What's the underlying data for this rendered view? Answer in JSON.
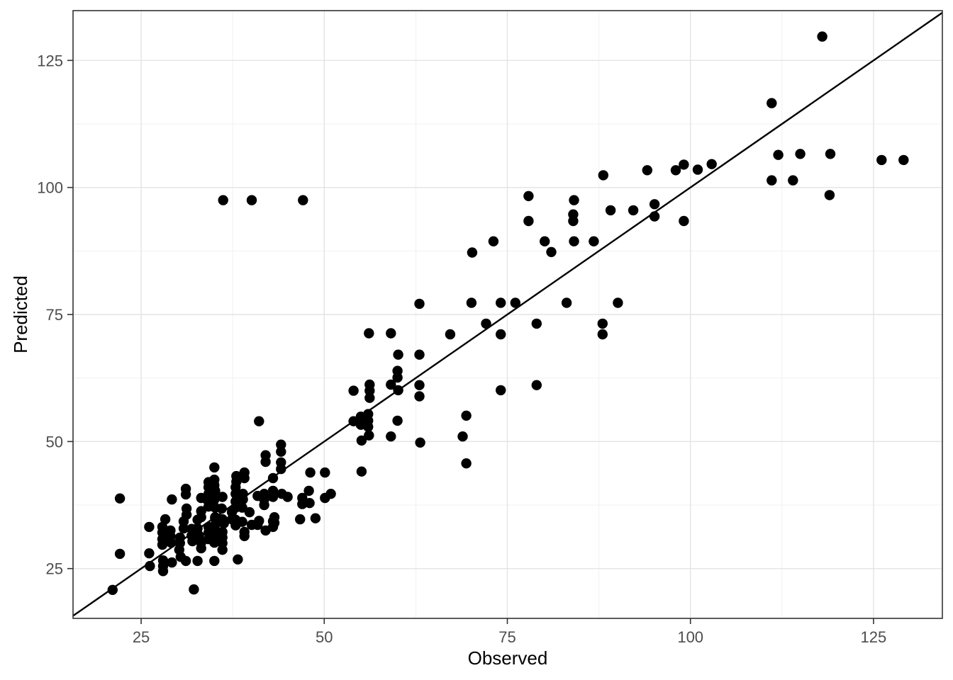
{
  "chart_data": {
    "type": "scatter",
    "title": "",
    "xlabel": "Observed",
    "ylabel": "Predicted",
    "xlim": [
      15.7,
      134.4
    ],
    "ylim": [
      15.2,
      134.8
    ],
    "x_ticks": [
      25,
      50,
      75,
      100,
      125
    ],
    "y_ticks": [
      25,
      50,
      75,
      100,
      125
    ],
    "x_minor_ticks": [
      37.5,
      62.5,
      87.5,
      112.5
    ],
    "y_minor_ticks": [
      37.5,
      62.5,
      87.5,
      112.5
    ],
    "grid": true,
    "legend_position": "none",
    "theme": "bw",
    "reference_line": {
      "kind": "identity",
      "slope": 1,
      "intercept": 0
    },
    "style": {
      "point_color": "#000000",
      "point_radius": 7.2,
      "line_color": "#000000",
      "line_width": 2.4,
      "panel_border_color": "#333333",
      "grid_major_color": "#e4e4e4",
      "grid_minor_color": "#f1f1f1",
      "tick_color": "#333333",
      "axis_text_color": "#4d4d4d",
      "axis_title_color": "#000000",
      "background": "#ffffff"
    },
    "points": [
      [
        21.1,
        20.8
      ],
      [
        22.1,
        27.9
      ],
      [
        22.1,
        38.8
      ],
      [
        26.1,
        33.2
      ],
      [
        26.1,
        28.0
      ],
      [
        26.2,
        25.5
      ],
      [
        27.9,
        33.2
      ],
      [
        27.9,
        32.1
      ],
      [
        27.9,
        30.8
      ],
      [
        27.9,
        29.7
      ],
      [
        28.0,
        26.6
      ],
      [
        28.0,
        25.5
      ],
      [
        28.0,
        24.5
      ],
      [
        28.3,
        34.7
      ],
      [
        29.0,
        32.5
      ],
      [
        29.0,
        31.4
      ],
      [
        29.1,
        30.1
      ],
      [
        29.2,
        26.2
      ],
      [
        29.2,
        38.6
      ],
      [
        30.3,
        31.1
      ],
      [
        30.3,
        30.0
      ],
      [
        30.2,
        28.7
      ],
      [
        30.4,
        27.3
      ],
      [
        30.8,
        34.3
      ],
      [
        30.8,
        32.9
      ],
      [
        31.1,
        40.7
      ],
      [
        31.1,
        39.6
      ],
      [
        31.2,
        36.8
      ],
      [
        31.2,
        35.6
      ],
      [
        31.1,
        26.5
      ],
      [
        31.9,
        32.8
      ],
      [
        31.9,
        31.5
      ],
      [
        32.0,
        30.4
      ],
      [
        32.2,
        20.9
      ],
      [
        32.7,
        34.6
      ],
      [
        32.7,
        32.9
      ],
      [
        32.7,
        26.5
      ],
      [
        32.9,
        31.5
      ],
      [
        33.2,
        38.9
      ],
      [
        33.2,
        36.3
      ],
      [
        33.2,
        35.1
      ],
      [
        33.2,
        30.1
      ],
      [
        33.2,
        29.0
      ],
      [
        34.2,
        42.0
      ],
      [
        34.2,
        41.0
      ],
      [
        34.2,
        39.7
      ],
      [
        34.1,
        38.4
      ],
      [
        34.2,
        37.2
      ],
      [
        34.2,
        33.2
      ],
      [
        34.2,
        32.1
      ],
      [
        34.2,
        30.8
      ],
      [
        35.0,
        44.9
      ],
      [
        35.0,
        42.5
      ],
      [
        35.0,
        41.4
      ],
      [
        35.0,
        38.6
      ],
      [
        35.1,
        40.3
      ],
      [
        35.1,
        37.0
      ],
      [
        35.1,
        35.1
      ],
      [
        35.1,
        34.9
      ],
      [
        35.1,
        33.6
      ],
      [
        35.0,
        32.5
      ],
      [
        35.0,
        31.4
      ],
      [
        35.0,
        30.1
      ],
      [
        35.0,
        26.5
      ],
      [
        35.5,
        34.5
      ],
      [
        36.1,
        39.1
      ],
      [
        36.0,
        36.8
      ],
      [
        36.1,
        34.7
      ],
      [
        36.1,
        32.2
      ],
      [
        36.1,
        31.1
      ],
      [
        36.1,
        30.0
      ],
      [
        36.1,
        28.7
      ],
      [
        36.3,
        33.9
      ],
      [
        36.2,
        97.5
      ],
      [
        40.1,
        97.5
      ],
      [
        47.1,
        97.5
      ],
      [
        37.4,
        36.1
      ],
      [
        37.4,
        34.7
      ],
      [
        37.9,
        41.0
      ],
      [
        37.9,
        39.7
      ],
      [
        37.9,
        38.2
      ],
      [
        37.9,
        37.0
      ],
      [
        37.9,
        34.6
      ],
      [
        37.9,
        33.5
      ],
      [
        38.0,
        43.2
      ],
      [
        38.0,
        42.1
      ],
      [
        38.2,
        26.8
      ],
      [
        38.8,
        37.0
      ],
      [
        38.8,
        34.2
      ],
      [
        38.9,
        39.7
      ],
      [
        38.9,
        38.6
      ],
      [
        39.1,
        43.9
      ],
      [
        39.1,
        42.8
      ],
      [
        39.1,
        32.2
      ],
      [
        39.1,
        31.4
      ],
      [
        39.8,
        36.1
      ],
      [
        40.1,
        33.6
      ],
      [
        40.9,
        39.3
      ],
      [
        40.9,
        33.6
      ],
      [
        41.1,
        54.0
      ],
      [
        41.1,
        34.4
      ],
      [
        41.8,
        39.7
      ],
      [
        41.8,
        38.6
      ],
      [
        41.8,
        37.5
      ],
      [
        42.0,
        47.3
      ],
      [
        42.0,
        46.0
      ],
      [
        42.0,
        32.5
      ],
      [
        43.0,
        42.8
      ],
      [
        43.0,
        40.3
      ],
      [
        43.0,
        39.1
      ],
      [
        43.0,
        34.3
      ],
      [
        43.0,
        33.2
      ],
      [
        43.2,
        35.1
      ],
      [
        43.2,
        34.0
      ],
      [
        44.1,
        49.4
      ],
      [
        44.1,
        48.0
      ],
      [
        44.1,
        45.9
      ],
      [
        44.1,
        44.6
      ],
      [
        44.2,
        39.7
      ],
      [
        45.0,
        39.1
      ],
      [
        46.7,
        34.7
      ],
      [
        47.0,
        38.9
      ],
      [
        47.0,
        37.7
      ],
      [
        47.9,
        40.3
      ],
      [
        48.0,
        37.9
      ],
      [
        48.1,
        43.9
      ],
      [
        48.8,
        34.9
      ],
      [
        50.1,
        43.9
      ],
      [
        50.1,
        38.9
      ],
      [
        50.9,
        39.7
      ],
      [
        54.0,
        60.0
      ],
      [
        54.0,
        54.0
      ],
      [
        55.0,
        54.9
      ],
      [
        55.0,
        53.3
      ],
      [
        55.1,
        50.2
      ],
      [
        55.1,
        44.1
      ],
      [
        56.0,
        55.4
      ],
      [
        56.0,
        54.1
      ],
      [
        56.0,
        52.9
      ],
      [
        56.1,
        71.3
      ],
      [
        56.1,
        51.2
      ],
      [
        56.2,
        61.2
      ],
      [
        56.2,
        60.0
      ],
      [
        56.2,
        58.6
      ],
      [
        59.1,
        71.3
      ],
      [
        59.1,
        61.2
      ],
      [
        59.1,
        51.0
      ],
      [
        60.0,
        63.9
      ],
      [
        60.0,
        62.6
      ],
      [
        60.0,
        54.1
      ],
      [
        60.1,
        67.1
      ],
      [
        60.1,
        60.1
      ],
      [
        63.0,
        77.1
      ],
      [
        63.0,
        67.1
      ],
      [
        63.0,
        61.1
      ],
      [
        63.0,
        58.9
      ],
      [
        63.1,
        49.8
      ],
      [
        67.2,
        71.1
      ],
      [
        68.9,
        51.0
      ],
      [
        69.4,
        55.1
      ],
      [
        69.4,
        45.7
      ],
      [
        70.1,
        77.3
      ],
      [
        70.2,
        87.2
      ],
      [
        72.1,
        73.2
      ],
      [
        73.1,
        89.4
      ],
      [
        74.1,
        77.3
      ],
      [
        74.1,
        71.1
      ],
      [
        74.1,
        60.1
      ],
      [
        76.1,
        77.3
      ],
      [
        77.9,
        98.3
      ],
      [
        77.9,
        93.4
      ],
      [
        79.0,
        73.2
      ],
      [
        79.0,
        61.1
      ],
      [
        80.1,
        89.4
      ],
      [
        81.0,
        87.3
      ],
      [
        83.1,
        77.3
      ],
      [
        84.1,
        97.5
      ],
      [
        84.0,
        94.7
      ],
      [
        84.0,
        93.4
      ],
      [
        84.1,
        89.4
      ],
      [
        86.8,
        89.4
      ],
      [
        88.0,
        73.2
      ],
      [
        88.0,
        71.1
      ],
      [
        88.1,
        102.4
      ],
      [
        89.1,
        95.5
      ],
      [
        90.1,
        77.3
      ],
      [
        92.2,
        95.5
      ],
      [
        94.1,
        103.4
      ],
      [
        95.1,
        96.7
      ],
      [
        95.1,
        94.3
      ],
      [
        98.0,
        103.4
      ],
      [
        99.1,
        104.5
      ],
      [
        99.1,
        93.4
      ],
      [
        101.0,
        103.5
      ],
      [
        102.9,
        104.6
      ],
      [
        111.1,
        116.6
      ],
      [
        111.1,
        101.4
      ],
      [
        112.0,
        106.4
      ],
      [
        114.0,
        101.4
      ],
      [
        115.0,
        106.6
      ],
      [
        118.0,
        129.7
      ],
      [
        119.1,
        106.6
      ],
      [
        119.0,
        98.5
      ],
      [
        126.1,
        105.4
      ],
      [
        129.1,
        105.4
      ]
    ]
  }
}
